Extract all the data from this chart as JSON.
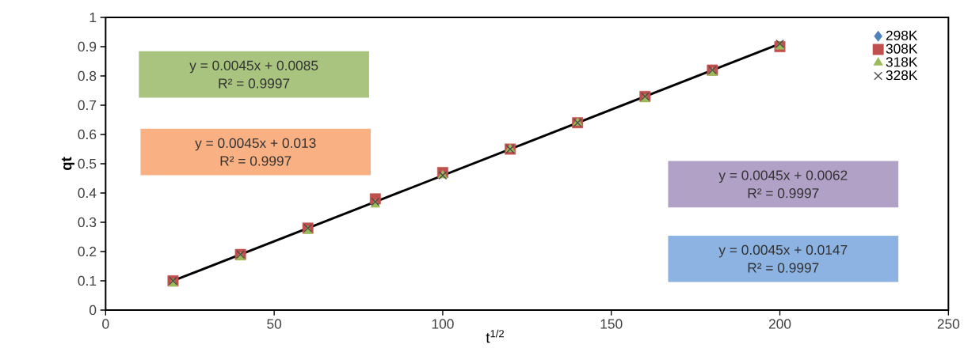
{
  "chart_data": {
    "type": "scatter",
    "xlabel": "t$^{1/2}$",
    "ylabel": "qt",
    "x": [
      20,
      40,
      60,
      80,
      100,
      120,
      140,
      160,
      180,
      200
    ],
    "series": [
      {
        "name": "298K",
        "color": "#4f81bd",
        "marker": "diamond",
        "values": [
          null,
          null,
          null,
          null,
          null,
          null,
          null,
          null,
          null,
          null
        ]
      },
      {
        "name": "308K",
        "color": "#c0504d",
        "marker": "square",
        "values": [
          0.1,
          0.19,
          0.28,
          0.38,
          0.47,
          0.55,
          0.64,
          0.73,
          0.82,
          0.9
        ]
      },
      {
        "name": "318K",
        "color": "#9bbb59",
        "marker": "triangle",
        "values": [
          0.09,
          0.18,
          0.27,
          0.36,
          0.46,
          0.55,
          0.64,
          0.72,
          0.81,
          0.9
        ]
      },
      {
        "name": "328K",
        "color": "#4a4a4a",
        "marker": "cross",
        "values": [
          0.1,
          0.19,
          0.28,
          0.37,
          0.46,
          0.55,
          0.64,
          0.73,
          0.82,
          0.91
        ]
      },
      {
        "type": "line",
        "color": "#000000",
        "marker": "none",
        "x": [
          20,
          200
        ],
        "values": [
          0.1,
          0.91
        ]
      }
    ],
    "annotations": [
      "y = 0.0045x + 0.0085",
      "R² = 0.9997",
      "y = 0.0045x + 0.013",
      "R² = 0.9997",
      "y = 0.0045x + 0.0062",
      "R² = 0.9997",
      "y = 0.0045x + 0.0147",
      "R² = 0.9997"
    ],
    "xlim": [
      0,
      250
    ],
    "xticks": [
      0,
      50,
      100,
      150,
      200,
      250
    ],
    "ylim": [
      0,
      1
    ],
    "yticks": [
      0,
      0.1,
      0.2,
      0.3,
      0.4,
      0.5,
      0.6,
      0.7,
      0.8,
      0.9,
      1
    ],
    "grid": false,
    "legend": "top right"
  }
}
